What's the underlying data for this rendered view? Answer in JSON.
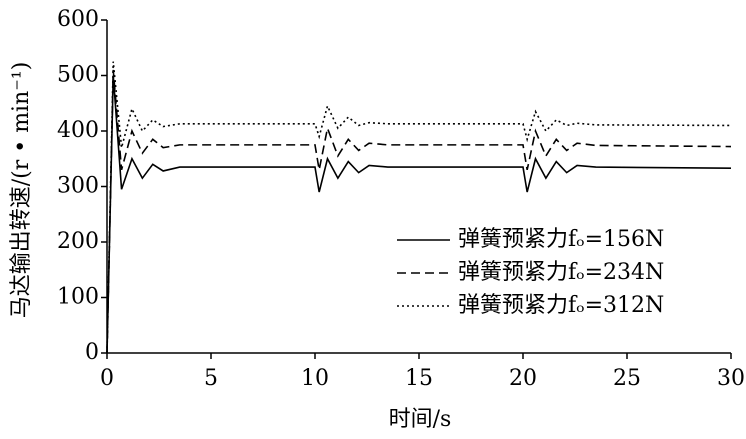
{
  "chart_data": {
    "type": "line",
    "x_label": "时间/s",
    "y_label": "马达输出转速/(r • min⁻¹)",
    "x": [
      0,
      0.3,
      0.7,
      1.2,
      1.7,
      2.2,
      2.7,
      3.5,
      10,
      10.2,
      10.6,
      11.1,
      11.6,
      12.1,
      12.6,
      13.5,
      20,
      20.2,
      20.6,
      21.1,
      21.6,
      22.1,
      22.6,
      23.5,
      30
    ],
    "series": [
      {
        "name": "弹簧预紧力fₒ=156N",
        "color": "#000000",
        "dash": "solid",
        "values": [
          0,
          500,
          295,
          350,
          315,
          340,
          328,
          335,
          335,
          290,
          350,
          315,
          345,
          325,
          338,
          335,
          335,
          290,
          350,
          315,
          345,
          325,
          338,
          335,
          333
        ]
      },
      {
        "name": "弹簧预紧力fₒ=234N",
        "color": "#000000",
        "dash": "dashed",
        "values": [
          0,
          510,
          330,
          400,
          360,
          385,
          370,
          375,
          375,
          330,
          405,
          355,
          385,
          365,
          378,
          375,
          375,
          330,
          400,
          355,
          385,
          365,
          378,
          374,
          372
        ]
      },
      {
        "name": "弹簧预紧力fₒ=312N",
        "color": "#000000",
        "dash": "dotted",
        "values": [
          0,
          525,
          370,
          440,
          400,
          420,
          408,
          413,
          413,
          390,
          445,
          405,
          425,
          410,
          415,
          413,
          413,
          385,
          435,
          400,
          420,
          410,
          414,
          411,
          410
        ]
      }
    ],
    "xlim": [
      0,
      30
    ],
    "xticks": [
      0,
      5,
      10,
      15,
      20,
      25,
      30
    ],
    "ylim": [
      0,
      600
    ],
    "yticks": [
      0,
      100,
      200,
      300,
      400,
      500,
      600
    ],
    "grid": false,
    "legend": "lower right"
  }
}
